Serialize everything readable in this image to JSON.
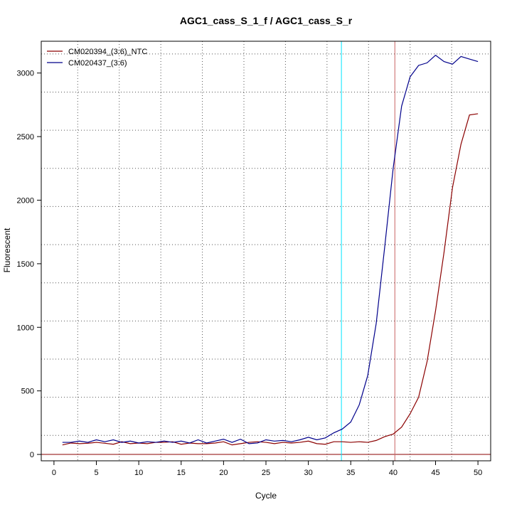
{
  "chart_data": {
    "type": "line",
    "title": "AGC1_cass_S_1_f / AGC1_cass_S_r",
    "xlabel": "Cycle",
    "ylabel": "Fluorescent",
    "xlim": [
      -1.5,
      51.5
    ],
    "ylim": [
      -50,
      3250
    ],
    "x_ticks": [
      0,
      5,
      10,
      15,
      20,
      25,
      30,
      35,
      40,
      45,
      50
    ],
    "y_ticks": [
      0,
      500,
      1000,
      1500,
      2000,
      2500,
      3000
    ],
    "grid": "on",
    "legend_position": "top-left",
    "x": [
      1,
      2,
      3,
      4,
      5,
      6,
      7,
      8,
      9,
      10,
      11,
      12,
      13,
      14,
      15,
      16,
      17,
      18,
      19,
      20,
      21,
      22,
      23,
      24,
      25,
      26,
      27,
      28,
      29,
      30,
      31,
      32,
      33,
      34,
      35,
      36,
      37,
      38,
      39,
      40,
      41,
      42,
      43,
      44,
      45,
      46,
      47,
      48,
      49,
      50
    ],
    "series": [
      {
        "name": "CM020394_(3:6)_NTC",
        "color": "#8b0000",
        "values": [
          75,
          90,
          85,
          88,
          95,
          88,
          80,
          100,
          85,
          90,
          85,
          95,
          95,
          100,
          80,
          90,
          85,
          85,
          90,
          100,
          75,
          85,
          95,
          100,
          95,
          85,
          95,
          90,
          95,
          105,
          85,
          80,
          100,
          100,
          95,
          100,
          95,
          110,
          140,
          160,
          215,
          320,
          450,
          730,
          1130,
          1590,
          2100,
          2440,
          2670,
          2680
        ]
      },
      {
        "name": "CM020437_(3:6)",
        "color": "#00008b",
        "values": [
          95,
          95,
          105,
          95,
          115,
          100,
          115,
          95,
          105,
          90,
          100,
          95,
          105,
          95,
          105,
          90,
          115,
          90,
          105,
          120,
          95,
          120,
          85,
          90,
          115,
          105,
          110,
          100,
          115,
          135,
          115,
          130,
          170,
          200,
          255,
          390,
          620,
          1030,
          1630,
          2250,
          2740,
          2970,
          3060,
          3080,
          3140,
          3090,
          3070,
          3130,
          3110,
          3090
        ]
      }
    ],
    "vertical_lines": [
      {
        "x": 33.9,
        "color": "#00e5ff"
      },
      {
        "x": 40.2,
        "color": "#c86464"
      }
    ],
    "horizontal_lines": [
      {
        "y": 0,
        "color": "#8b0000"
      }
    ]
  }
}
